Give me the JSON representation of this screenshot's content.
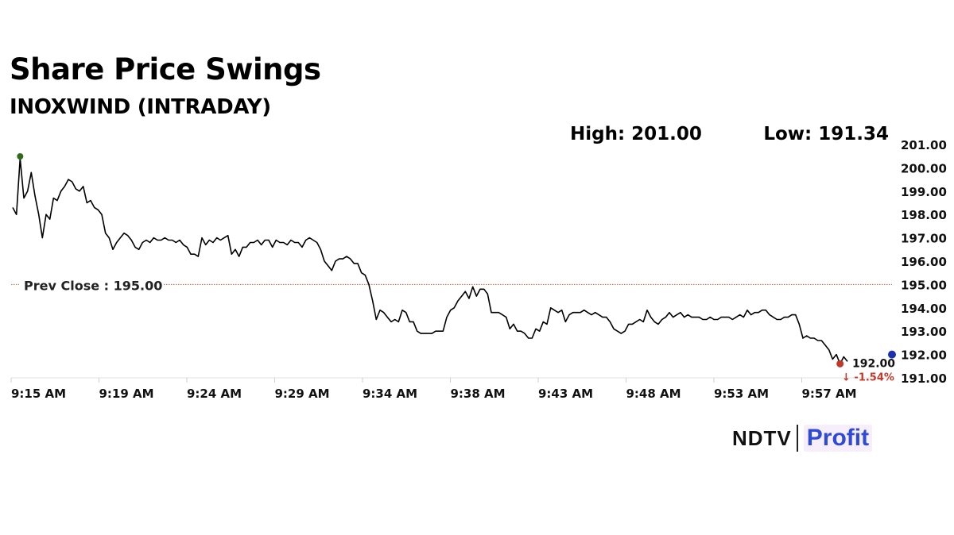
{
  "header": {
    "title": "Share Price Swings",
    "subtitle": "INOXWIND (INTRADAY)",
    "high_text": "High: 201.00",
    "low_text": "Low: 191.34"
  },
  "brand": {
    "primary": "NDTV",
    "secondary": "Profit",
    "accent_color": "#2d4bd6"
  },
  "chart_data": {
    "type": "line",
    "x_ticks": [
      "9:15 AM",
      "9:19 AM",
      "9:24 AM",
      "9:29 AM",
      "9:34 AM",
      "9:38 AM",
      "9:43 AM",
      "9:48 AM",
      "9:53 AM",
      "9:57 AM"
    ],
    "y_ticks": [
      "201.00",
      "200.00",
      "199.00",
      "198.00",
      "197.00",
      "196.00",
      "195.00",
      "194.00",
      "193.00",
      "192.00",
      "191.00"
    ],
    "ylim": [
      191.0,
      201.0
    ],
    "y_axis_side": "right",
    "line_color": "#000000",
    "series": [
      {
        "values": [
          198.3,
          198.0,
          200.4,
          198.7,
          199.0,
          199.8,
          198.8,
          198.0,
          197.0,
          198.0,
          197.8,
          198.7,
          198.6,
          199.0,
          199.2,
          199.5,
          199.4,
          199.1,
          199.0,
          199.2,
          198.5,
          198.6,
          198.3,
          198.2,
          198.0,
          197.2,
          197.0,
          196.5,
          196.8,
          197.0,
          197.2,
          197.1,
          196.9,
          196.6,
          196.5,
          196.8,
          196.9,
          196.8,
          197.0,
          196.9,
          196.9,
          197.0,
          196.9,
          196.9,
          196.8,
          196.9,
          196.7,
          196.6,
          196.3,
          196.3,
          196.2,
          197.0,
          196.7,
          196.9,
          196.8,
          197.0,
          196.9,
          197.0,
          197.1,
          196.3,
          196.5,
          196.2,
          196.6,
          196.6,
          196.8,
          196.8,
          196.9,
          196.7,
          196.9,
          196.9,
          196.6,
          196.9,
          196.8,
          196.8,
          196.7,
          196.9,
          196.8,
          196.8,
          196.6,
          196.9,
          197.0,
          196.9,
          196.8,
          196.5,
          196.0,
          195.8,
          195.6,
          196.0,
          196.1,
          196.1,
          196.2,
          196.1,
          195.9,
          195.9,
          195.5,
          195.4,
          195.0,
          194.3,
          193.5,
          193.9,
          193.8,
          193.6,
          193.4,
          193.5,
          193.4,
          193.9,
          193.8,
          193.4,
          193.4,
          193.0,
          192.9,
          192.9,
          192.9,
          192.9,
          193.0,
          193.0,
          193.0,
          193.6,
          193.9,
          194.0,
          194.3,
          194.5,
          194.7,
          194.4,
          194.9,
          194.5,
          194.8,
          194.8,
          194.6,
          193.8,
          193.8,
          193.8,
          193.7,
          193.6,
          193.1,
          193.3,
          193.0,
          193.0,
          192.9,
          192.7,
          192.7,
          193.1,
          193.0,
          193.4,
          193.3,
          194.0,
          193.9,
          193.8,
          193.9,
          193.4,
          193.7,
          193.8,
          193.8,
          193.8,
          193.9,
          193.8,
          193.7,
          193.8,
          193.7,
          193.6,
          193.6,
          193.4,
          193.1,
          193.0,
          192.9,
          193.0,
          193.3,
          193.3,
          193.4,
          193.5,
          193.4,
          193.9,
          193.6,
          193.4,
          193.3,
          193.5,
          193.6,
          193.8,
          193.6,
          193.7,
          193.8,
          193.6,
          193.7,
          193.6,
          193.6,
          193.6,
          193.5,
          193.5,
          193.6,
          193.5,
          193.5,
          193.6,
          193.6,
          193.6,
          193.5,
          193.6,
          193.7,
          193.6,
          193.9,
          193.7,
          193.8,
          193.8,
          193.9,
          193.9,
          193.7,
          193.6,
          193.5,
          193.5,
          193.6,
          193.6,
          193.7,
          193.7,
          193.3,
          192.7,
          192.8,
          192.7,
          192.7,
          192.6,
          192.6,
          192.4,
          192.2,
          191.8,
          192.0,
          191.6,
          191.9,
          191.7
        ]
      }
    ],
    "high": {
      "value": 201.0,
      "color": "#2e6b1c"
    },
    "low": {
      "value": 191.34,
      "color": "#c0392b"
    },
    "reference_line": {
      "label": "Prev Close : 195.00",
      "value": 195.0,
      "color": "#b36a3e"
    },
    "last_price": {
      "label": "192.00",
      "change": "↓ -1.54%",
      "change_color": "#c0392b",
      "marker_color": "#1b2fb3"
    }
  }
}
